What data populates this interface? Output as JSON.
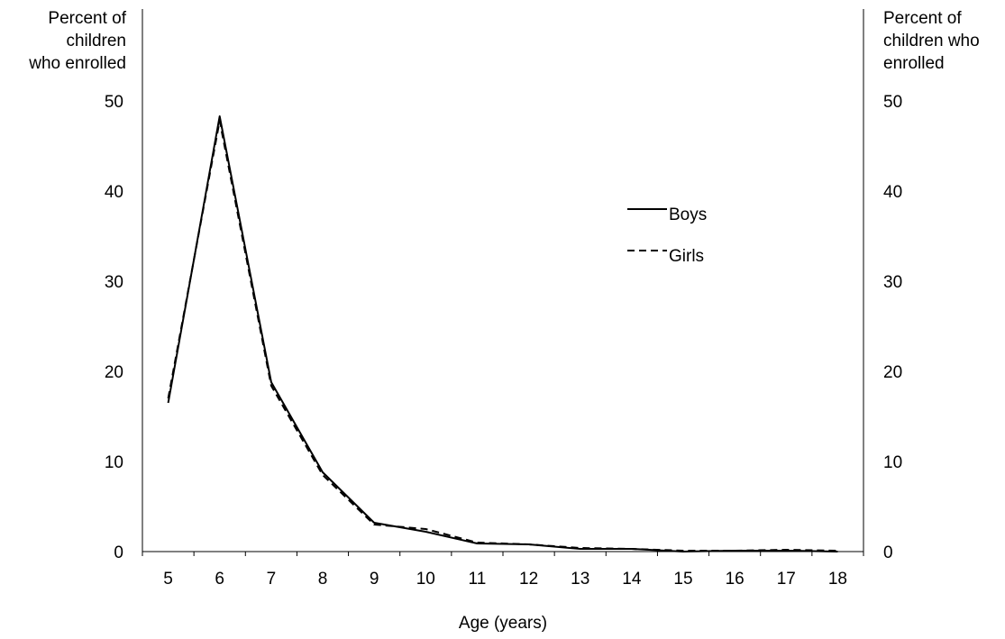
{
  "chart_data": {
    "type": "line",
    "title": "",
    "xlabel": "Age (years)",
    "ylabel_left": [
      "Percent of",
      "children",
      "who enrolled"
    ],
    "ylabel_right": [
      "Percent of",
      "children who",
      "enrolled"
    ],
    "x": [
      5,
      6,
      7,
      8,
      9,
      10,
      11,
      12,
      13,
      14,
      15,
      16,
      17,
      18
    ],
    "xlim": [
      4.5,
      18.5
    ],
    "ylim": [
      0,
      50
    ],
    "yticks": [
      0,
      10,
      20,
      30,
      40,
      50
    ],
    "grid": false,
    "legend_position": "top-right",
    "series": [
      {
        "name": "Boys",
        "style": "solid",
        "color": "#000000",
        "values": [
          16.5,
          48.3,
          18.8,
          8.8,
          3.2,
          2.2,
          0.9,
          0.8,
          0.3,
          0.3,
          0.0,
          0.1,
          0.1,
          0.0
        ]
      },
      {
        "name": "Girls",
        "style": "dashed",
        "color": "#000000",
        "values": [
          17.0,
          47.8,
          18.4,
          8.5,
          3.0,
          2.5,
          1.0,
          0.8,
          0.4,
          0.3,
          0.1,
          0.1,
          0.2,
          0.1
        ]
      }
    ]
  }
}
